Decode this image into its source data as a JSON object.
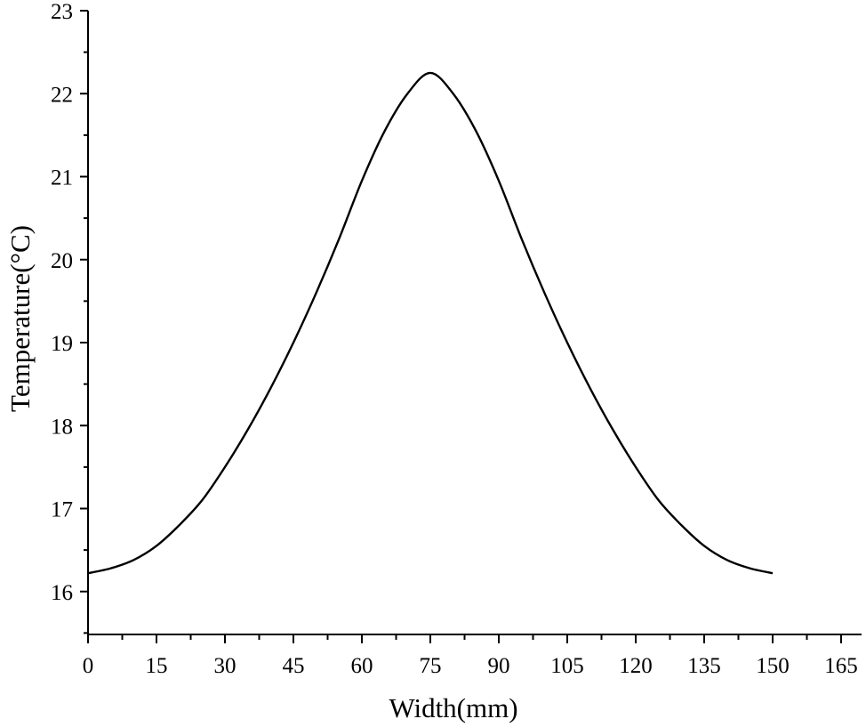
{
  "chart_data": {
    "type": "line",
    "title": "",
    "xlabel": "Width(mm)",
    "ylabel": "Temperature(°C)",
    "xlim": [
      0,
      170
    ],
    "ylim": [
      15.5,
      23
    ],
    "x_ticks": [
      0,
      15,
      30,
      45,
      60,
      75,
      90,
      105,
      120,
      135,
      150,
      165
    ],
    "x_tick_labels": [
      "0",
      "15",
      "30",
      "45",
      "60",
      "75",
      "90",
      "105",
      "120",
      "135",
      "150",
      "165"
    ],
    "y_ticks": [
      16,
      17,
      18,
      19,
      20,
      21,
      22,
      23
    ],
    "y_tick_labels": [
      "16",
      "17",
      "18",
      "19",
      "20",
      "21",
      "22",
      "23"
    ],
    "grid": false,
    "legend": false,
    "series": [
      {
        "x": [
          0,
          5,
          10,
          15,
          20,
          25,
          30,
          35,
          40,
          45,
          50,
          55,
          60,
          65,
          70,
          75,
          80,
          85,
          90,
          95,
          100,
          105,
          110,
          115,
          120,
          125,
          130,
          135,
          140,
          145,
          150
        ],
        "y": [
          16.22,
          16.28,
          16.38,
          16.55,
          16.8,
          17.1,
          17.5,
          17.95,
          18.45,
          19.0,
          19.6,
          20.25,
          20.95,
          21.55,
          22.0,
          22.25,
          22.0,
          21.55,
          20.95,
          20.25,
          19.6,
          19.0,
          18.45,
          17.95,
          17.5,
          17.1,
          16.8,
          16.55,
          16.38,
          16.28,
          16.22
        ]
      }
    ]
  }
}
